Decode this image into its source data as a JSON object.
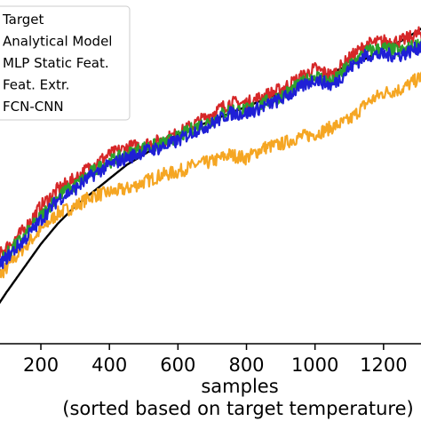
{
  "chart_data": {
    "type": "line",
    "title": "",
    "xlabel": "samples",
    "xlabel_line2": "(sorted based on target temperature)",
    "ylabel": "",
    "xlim": [
      60,
      1330
    ],
    "ylim": [
      0,
      100
    ],
    "xticks": [
      200,
      400,
      600,
      800,
      1000,
      1200
    ],
    "xtick_labels": [
      "200",
      "400",
      "600",
      "800",
      "1000",
      "1200"
    ],
    "grid": false,
    "legend_position": "top-left",
    "legend": [
      "Target",
      "Analytical Model",
      "MLP Static Feat.",
      "Feat. Extr.",
      "FCN-CNN"
    ],
    "series": [
      {
        "name": "Target",
        "color": "#000000",
        "x": [
          60,
          100,
          150,
          200,
          250,
          300,
          350,
          400,
          450,
          500,
          550,
          600,
          650,
          700,
          750,
          800,
          850,
          900,
          950,
          1000,
          1050,
          1100,
          1150,
          1200,
          1250,
          1300,
          1330
        ],
        "values": [
          9,
          15,
          22,
          29,
          35,
          40,
          44,
          48,
          52,
          55,
          58,
          61,
          63,
          65,
          67,
          69,
          71,
          73,
          75,
          77,
          79,
          81,
          83,
          86,
          88,
          91,
          93
        ],
        "noise": 0
      },
      {
        "name": "Analytical Model",
        "color": "#f5a623",
        "x": [
          60,
          100,
          150,
          200,
          250,
          300,
          350,
          400,
          450,
          500,
          550,
          600,
          650,
          700,
          750,
          800,
          850,
          900,
          950,
          1000,
          1050,
          1100,
          1150,
          1200,
          1250,
          1300,
          1330
        ],
        "values": [
          18,
          22,
          28,
          33,
          38,
          40,
          43,
          44,
          45,
          47,
          49,
          50,
          52,
          53,
          55,
          54,
          57,
          58,
          60,
          61,
          63,
          65,
          70,
          73,
          74,
          77,
          79
        ],
        "noise": 2
      },
      {
        "name": "MLP Static Feat.",
        "color": "#d62728",
        "x": [
          60,
          100,
          150,
          200,
          250,
          300,
          350,
          400,
          450,
          500,
          550,
          600,
          650,
          700,
          750,
          800,
          850,
          900,
          950,
          1000,
          1050,
          1100,
          1150,
          1200,
          1250,
          1300,
          1330
        ],
        "values": [
          24,
          28,
          33,
          40,
          45,
          48,
          52,
          55,
          57,
          58,
          59,
          61,
          64,
          67,
          70,
          70,
          72,
          74,
          77,
          80,
          78,
          83,
          87,
          88,
          88,
          90,
          92
        ],
        "noise": 2
      },
      {
        "name": "Feat. Extr.",
        "color": "#2ca02c",
        "x": [
          60,
          100,
          150,
          200,
          250,
          300,
          350,
          400,
          450,
          500,
          550,
          600,
          650,
          700,
          750,
          800,
          850,
          900,
          950,
          1000,
          1050,
          1100,
          1150,
          1200,
          1250,
          1300,
          1330
        ],
        "values": [
          22,
          26,
          31,
          37,
          43,
          46,
          50,
          53,
          55,
          57,
          58,
          60,
          63,
          65,
          68,
          68,
          70,
          72,
          75,
          78,
          76,
          81,
          85,
          86,
          85,
          87,
          89
        ],
        "noise": 2
      },
      {
        "name": "FCN-CNN",
        "color": "#1f1fd6",
        "x": [
          60,
          100,
          150,
          200,
          250,
          300,
          350,
          400,
          450,
          500,
          550,
          600,
          650,
          700,
          750,
          800,
          850,
          900,
          950,
          1000,
          1050,
          1100,
          1150,
          1200,
          1250,
          1300,
          1330
        ],
        "values": [
          21,
          25,
          30,
          36,
          42,
          45,
          49,
          52,
          54,
          56,
          57,
          59,
          62,
          64,
          67,
          67,
          69,
          71,
          74,
          77,
          75,
          80,
          84,
          84,
          84,
          86,
          88
        ],
        "noise": 2
      }
    ]
  }
}
